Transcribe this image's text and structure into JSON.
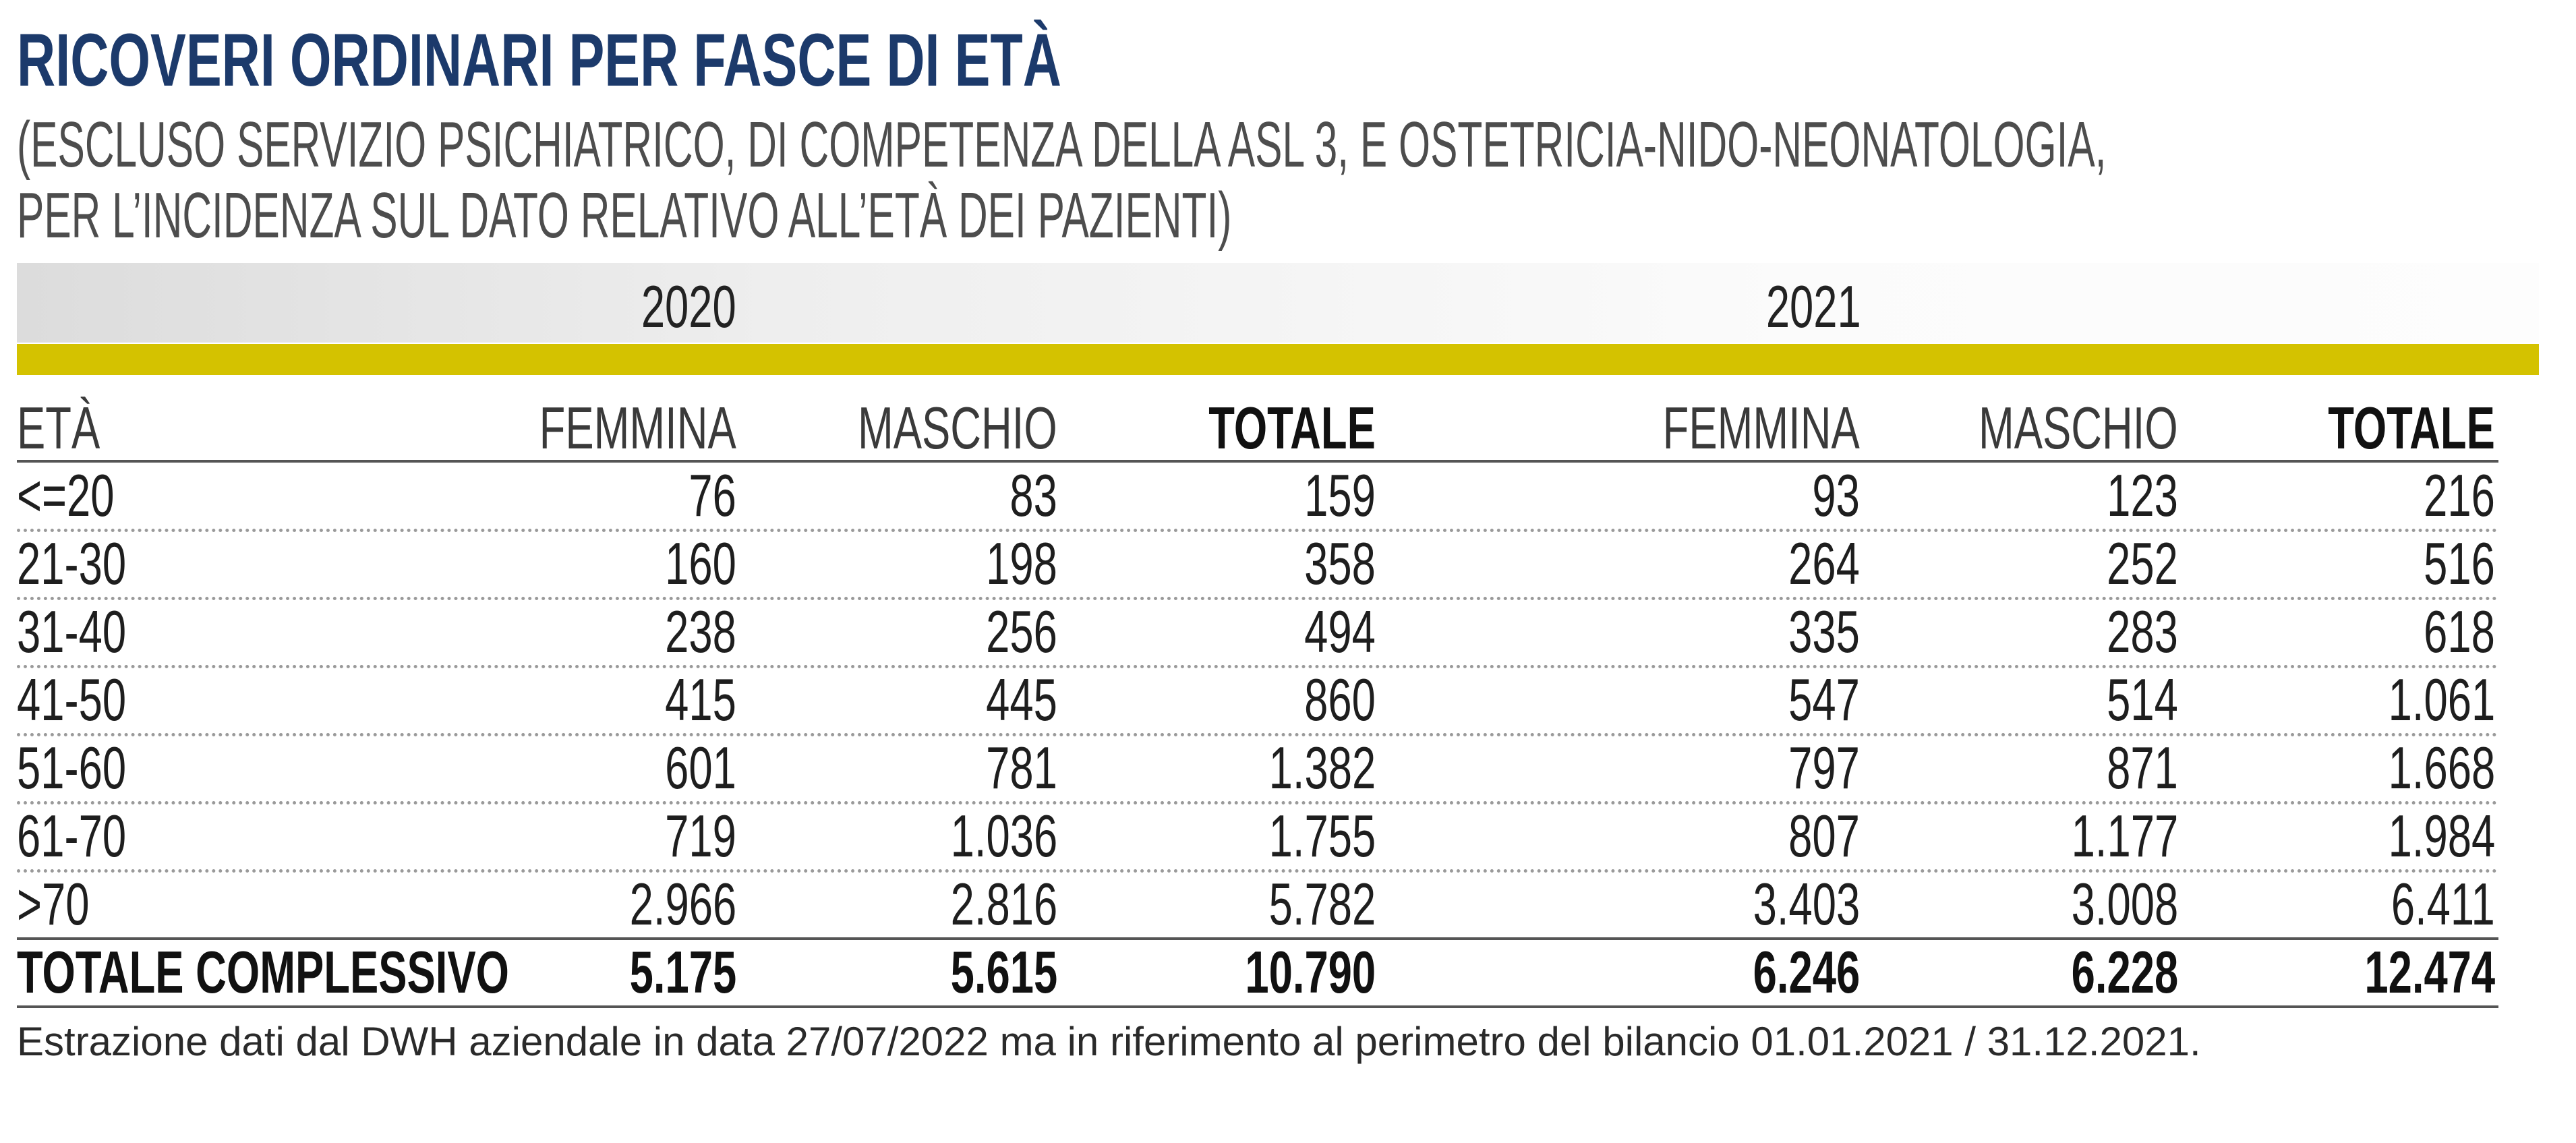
{
  "title": "RICOVERI ORDINARI PER FASCE DI ETÀ",
  "subtitle_line1": "(ESCLUSO SERVIZIO PSICHIATRICO, DI COMPETENZA DELLA ASL 3, E OSTETRICIA-NIDO-NEONATOLOGIA,",
  "subtitle_line2": "PER L’INCIDENZA SUL DATO RELATIVO ALL’ETÀ DEI PAZIENTI)",
  "colors": {
    "title": "#1c3a6b",
    "accent_bar": "#d4c200",
    "band": "#eeeeee"
  },
  "years": [
    "2020",
    "2021"
  ],
  "footnote": "Estrazione dati dal DWH aziendale in data 27/07/2022 ma in riferimento al perimetro del bilancio 01.01.2021 / 31.12.2021.",
  "chart_data": {
    "type": "table",
    "title": "RICOVERI ORDINARI PER FASCE DI ETÀ",
    "column_groups": [
      "2020",
      "2021"
    ],
    "columns": [
      "ETÀ",
      "FEMMINA",
      "MASCHIO",
      "TOTALE",
      "FEMMINA",
      "MASCHIO",
      "TOTALE"
    ],
    "rows": [
      [
        "<=20",
        "76",
        "83",
        "159",
        "93",
        "123",
        "216"
      ],
      [
        "21-30",
        "160",
        "198",
        "358",
        "264",
        "252",
        "516"
      ],
      [
        "31-40",
        "238",
        "256",
        "494",
        "335",
        "283",
        "618"
      ],
      [
        "41-50",
        "415",
        "445",
        "860",
        "547",
        "514",
        "1.061"
      ],
      [
        "51-60",
        "601",
        "781",
        "1.382",
        "797",
        "871",
        "1.668"
      ],
      [
        "61-70",
        "719",
        "1.036",
        "1.755",
        "807",
        "1.177",
        "1.984"
      ],
      [
        ">70",
        "2.966",
        "2.816",
        "5.782",
        "3.403",
        "3.008",
        "6.411"
      ]
    ],
    "total_row": [
      "TOTALE COMPLESSIVO",
      "5.175",
      "5.615",
      "10.790",
      "6.246",
      "6.228",
      "12.474"
    ]
  }
}
